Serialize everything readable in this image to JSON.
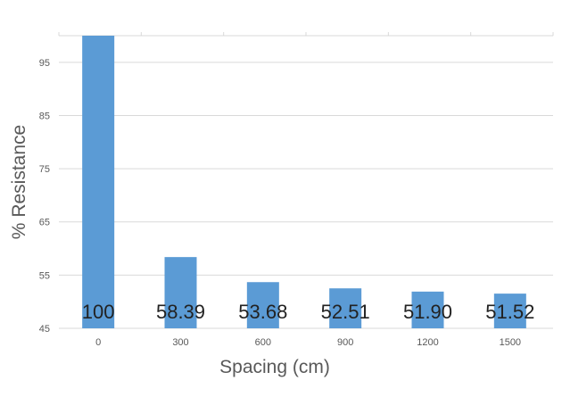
{
  "chart_data": {
    "type": "bar",
    "title": "",
    "xlabel": "Spacing (cm)",
    "ylabel": "% Resistance",
    "categories": [
      "0",
      "300",
      "600",
      "900",
      "1200",
      "1500"
    ],
    "values": [
      100,
      58.39,
      53.68,
      52.51,
      51.9,
      51.52
    ],
    "data_labels": [
      "100",
      "58.39",
      "53.68",
      "52.51",
      "51.90",
      "51.52"
    ],
    "yticks": [
      "45",
      "55",
      "65",
      "75",
      "85",
      "95"
    ],
    "ylim": [
      45,
      100
    ],
    "grid": true,
    "legend": "none",
    "bar_color": "#5B9BD5",
    "grid_color": "#D9D9D9",
    "tick_label_color": "#595959",
    "axis_title_color": "#595959",
    "data_label_color": "#222222"
  }
}
